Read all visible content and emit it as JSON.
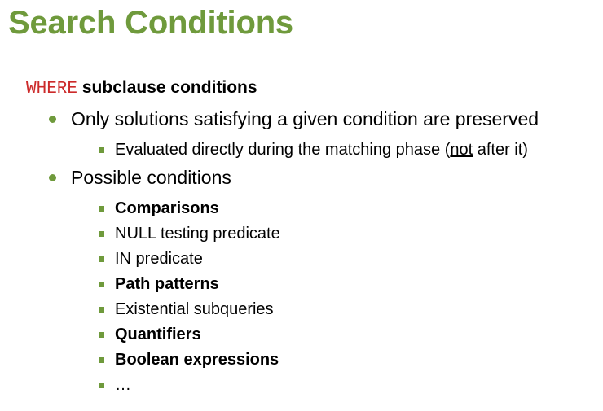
{
  "title": "Search Conditions",
  "heading": {
    "keyword": "WHERE",
    "text": "subclause conditions"
  },
  "bullets": {
    "b1": "Only solutions satisfying a given condition are preserved",
    "b1_sub": {
      "before": "Evaluated directly during the matching phase (",
      "underlined": "not",
      "after": " after it)"
    },
    "b2": "Possible conditions",
    "b2_items": [
      "Comparisons",
      "NULL testing predicate",
      "IN predicate",
      "Path patterns",
      "Existential subqueries",
      "Quantifiers",
      "Boolean expressions",
      "…"
    ]
  },
  "colors": {
    "accent": "#6f9a3c",
    "keyword": "#cc2a2a"
  }
}
